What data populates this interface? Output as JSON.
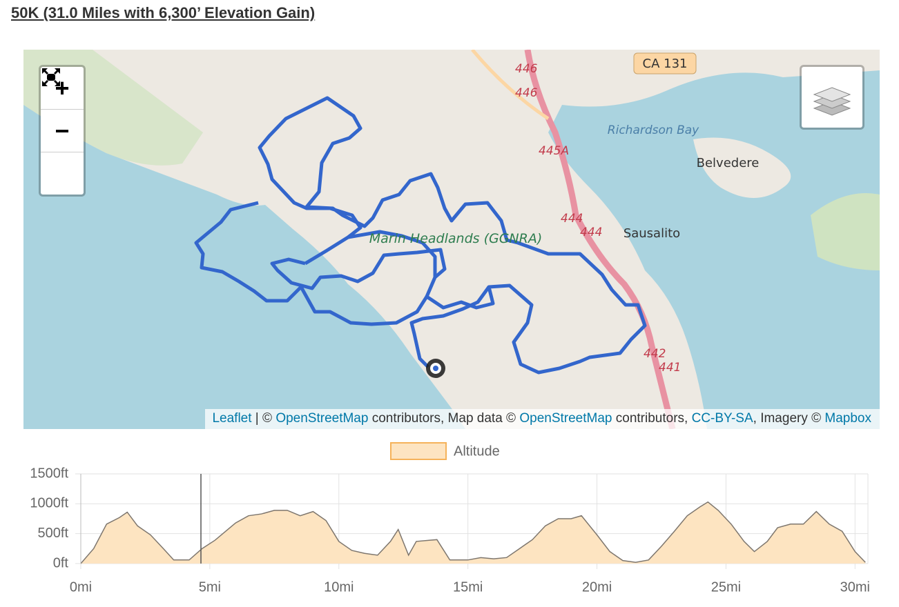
{
  "header": {
    "title": "50K (31.0 Miles with 6,300’ Elevation Gain)"
  },
  "map": {
    "controls": {
      "zoom_in": "+",
      "zoom_out": "−"
    },
    "labels": {
      "highway": "CA 131",
      "route_446a": "446",
      "route_446b": "446",
      "route_445a": "445A",
      "route_444a": "444",
      "route_444b": "444",
      "route_442": "442",
      "route_441": "441",
      "bay": "Richardson Bay",
      "belvedere": "Belvedere",
      "sausalito": "Sausalito",
      "park": "Marin Headlands (GGNRA)"
    },
    "attribution": [
      {
        "text": "Leaflet",
        "link": true
      },
      {
        "text": " | © ",
        "link": false
      },
      {
        "text": "OpenStreetMap",
        "link": true
      },
      {
        "text": " contributors, Map data © ",
        "link": false
      },
      {
        "text": "OpenStreetMap",
        "link": true
      },
      {
        "text": " contributors, ",
        "link": false
      },
      {
        "text": "CC-BY-SA",
        "link": true
      },
      {
        "text": ", Imagery © ",
        "link": false
      },
      {
        "text": "Mapbox",
        "link": true
      }
    ]
  },
  "chart_data": {
    "type": "area",
    "x": [
      0,
      0.5,
      1,
      1.5,
      1.8,
      2.2,
      2.7,
      3.2,
      3.6,
      4.2,
      4.7,
      5.2,
      6,
      6.5,
      7,
      7.5,
      8,
      8.5,
      9,
      9.5,
      10,
      10.5,
      11,
      11.5,
      12,
      12.3,
      12.7,
      13,
      13.5,
      13.8,
      14.3,
      15,
      15.5,
      16,
      16.5,
      17,
      17.5,
      18,
      18.5,
      19,
      19.4,
      20,
      20.5,
      21,
      21.5,
      22,
      22.5,
      23,
      23.5,
      24,
      24.3,
      24.7,
      25.2,
      25.7,
      26.1,
      26.6,
      27,
      27.5,
      28,
      28.5,
      29,
      29.5,
      30,
      30.4
    ],
    "series": [
      {
        "name": "Altitude",
        "color": "#fde4c1",
        "values": [
          0,
          250,
          660,
          770,
          860,
          630,
          480,
          250,
          60,
          60,
          250,
          390,
          680,
          800,
          830,
          890,
          890,
          800,
          870,
          720,
          370,
          220,
          170,
          140,
          370,
          570,
          140,
          370,
          390,
          400,
          60,
          60,
          100,
          80,
          100,
          250,
          400,
          630,
          750,
          750,
          800,
          480,
          200,
          50,
          20,
          60,
          290,
          540,
          800,
          950,
          1030,
          890,
          660,
          370,
          200,
          370,
          600,
          660,
          660,
          870,
          660,
          540,
          200,
          20
        ]
      }
    ],
    "xlim": [
      0,
      30.5
    ],
    "xticks": [
      {
        "value": 0,
        "label": "0mi"
      },
      {
        "value": 5,
        "label": "5mi"
      },
      {
        "value": 10,
        "label": "10mi"
      },
      {
        "value": 15,
        "label": "15mi"
      },
      {
        "value": 20,
        "label": "20mi"
      },
      {
        "value": 25,
        "label": "25mi"
      },
      {
        "value": 30,
        "label": "30mi"
      }
    ],
    "ylim": [
      0,
      1500
    ],
    "yticks": [
      {
        "value": 0,
        "label": "0ft"
      },
      {
        "value": 500,
        "label": "500ft"
      },
      {
        "value": 1000,
        "label": "1000ft"
      },
      {
        "value": 1500,
        "label": "1500ft"
      }
    ],
    "grid": true
  }
}
